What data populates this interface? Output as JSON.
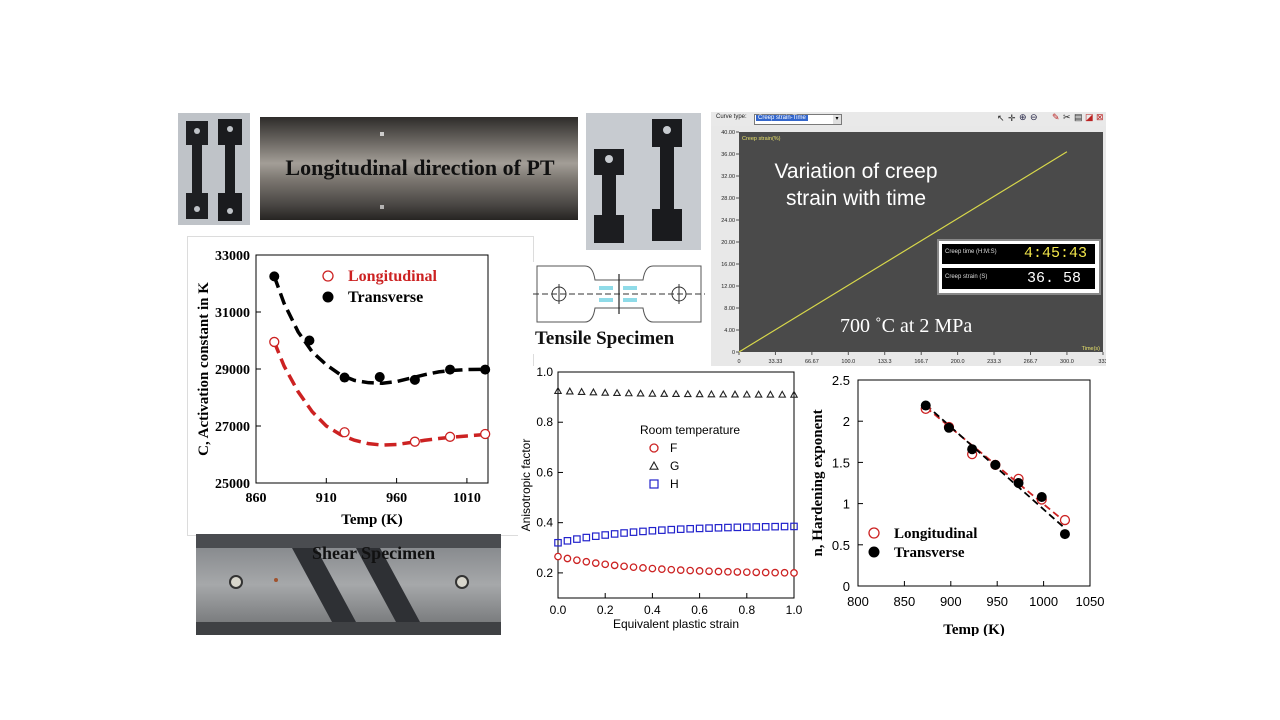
{
  "photos": {
    "pt_label": "Longitudinal direction of PT",
    "tensile_label": "Tensile Specimen",
    "shear_label": "Shear Specimen"
  },
  "creep_window": {
    "curve_type_label": "Curve type:",
    "curve_type_value": "Creep strain-Time",
    "y_axis_title": "Creep strain(%)",
    "x_axis_title": "Time(s)",
    "overlay_title_line1": "Variation of creep",
    "overlay_title_line2": "strain with time",
    "condition": "700 ˚C at 2 MPa",
    "readout_time_label": "Creep time (H:M:S)",
    "readout_time_value": "4:45:43",
    "readout_strain_label": "Creep strain (S)",
    "readout_strain_value": "36. 58",
    "colors": {
      "background": "#4a4a4a",
      "line": "#d8d84a"
    }
  },
  "chart_data": [
    {
      "id": "activation",
      "type": "scatter",
      "xlabel": "Temp (K)",
      "ylabel": "C,  Activation constant in K",
      "xlim": [
        860,
        1025
      ],
      "ylim": [
        25000,
        33000
      ],
      "xticks": [
        860,
        910,
        960,
        1010
      ],
      "yticks": [
        25000,
        27000,
        29000,
        31000,
        33000
      ],
      "legend_position": "top-right",
      "series": [
        {
          "name": "Longitudinal",
          "color": "#cc2222",
          "marker": "open-circle",
          "x": [
            873,
            923,
            973,
            998,
            1023
          ],
          "y": [
            29950,
            26780,
            26450,
            26620,
            26720
          ],
          "fit_x": [
            873,
            880,
            890,
            900,
            910,
            920,
            930,
            940,
            950,
            960,
            970,
            980,
            990,
            1000,
            1010,
            1023
          ],
          "fit_y": [
            29950,
            29100,
            28200,
            27500,
            27000,
            26700,
            26500,
            26380,
            26330,
            26350,
            26420,
            26500,
            26560,
            26610,
            26650,
            26700
          ]
        },
        {
          "name": "Transverse",
          "color": "#000000",
          "marker": "filled-circle",
          "x": [
            873,
            898,
            923,
            948,
            973,
            998,
            1023
          ],
          "y": [
            32250,
            30000,
            28700,
            28720,
            28620,
            28980,
            28980
          ],
          "fit_x": [
            873,
            880,
            890,
            900,
            910,
            920,
            930,
            940,
            950,
            960,
            970,
            980,
            990,
            1000,
            1010,
            1023
          ],
          "fit_y": [
            32250,
            31300,
            30300,
            29600,
            29150,
            28800,
            28600,
            28520,
            28500,
            28560,
            28680,
            28800,
            28900,
            28950,
            28980,
            28990
          ]
        }
      ]
    },
    {
      "id": "anisotropic",
      "type": "scatter",
      "xlabel": "Equivalent plastic strain",
      "ylabel": "Anisotropic factor",
      "xlim": [
        0,
        1
      ],
      "ylim": [
        0.1,
        1.0
      ],
      "xticks": [
        "0.0",
        "0.2",
        "0.4",
        "0.6",
        "0.8",
        "1.0"
      ],
      "yticks": [
        "0.2",
        "0.4",
        "0.6",
        "0.8",
        "1.0"
      ],
      "legend_title": "Room temperature",
      "legend_position": "center",
      "series": [
        {
          "name": "F",
          "color": "#cc2222",
          "marker": "open-circle",
          "y_start": 0.265,
          "y_end": 0.2,
          "points": 26
        },
        {
          "name": "G",
          "color": "#222222",
          "marker": "open-triangle",
          "y_start": 0.925,
          "y_end": 0.91,
          "points": 21
        },
        {
          "name": "H",
          "color": "#2222cc",
          "marker": "open-square",
          "y_start": 0.32,
          "y_end": 0.385,
          "points": 26
        }
      ]
    },
    {
      "id": "creep",
      "type": "line",
      "xlabel": "Time(s)",
      "ylabel": "Creep strain(%)",
      "xlim": [
        0,
        333
      ],
      "ylim": [
        0,
        40
      ],
      "xticks": [
        "0",
        "33.33",
        "66.67",
        "100.0",
        "133.3",
        "166.7",
        "200.0",
        "233.3",
        "266.7",
        "300.0",
        "333"
      ],
      "yticks": [
        "0",
        "4.00",
        "8.00",
        "12.00",
        "16.00",
        "20.00",
        "24.00",
        "28.00",
        "32.00",
        "36.00",
        "40.00"
      ],
      "series": [
        {
          "x": [
            0,
            300
          ],
          "y": [
            0,
            36.4
          ]
        }
      ]
    },
    {
      "id": "hardening",
      "type": "scatter",
      "xlabel": "Temp (K)",
      "ylabel": "n, Hardening exponent",
      "xlim": [
        800,
        1050
      ],
      "ylim": [
        0,
        2.5
      ],
      "xticks": [
        800,
        850,
        900,
        950,
        1000,
        1050
      ],
      "yticks": [
        "0",
        "0.5",
        "1",
        "1.5",
        "2",
        "2.5"
      ],
      "legend_position": "bottom-left",
      "series": [
        {
          "name": "Longitudinal",
          "color": "#cc2222",
          "marker": "open-circle",
          "x": [
            873,
            898,
            923,
            948,
            973,
            998,
            1023
          ],
          "y": [
            2.15,
            1.93,
            1.6,
            1.47,
            1.3,
            1.05,
            0.8
          ],
          "fit_x": [
            873,
            1023
          ],
          "fit_y": [
            2.17,
            0.78
          ]
        },
        {
          "name": "Transverse",
          "color": "#000000",
          "marker": "filled-circle",
          "x": [
            873,
            898,
            923,
            948,
            973,
            998,
            1023
          ],
          "y": [
            2.19,
            1.92,
            1.66,
            1.47,
            1.25,
            1.08,
            0.63
          ],
          "fit_x": [
            873,
            1023
          ],
          "fit_y": [
            2.2,
            0.7
          ]
        }
      ]
    }
  ]
}
